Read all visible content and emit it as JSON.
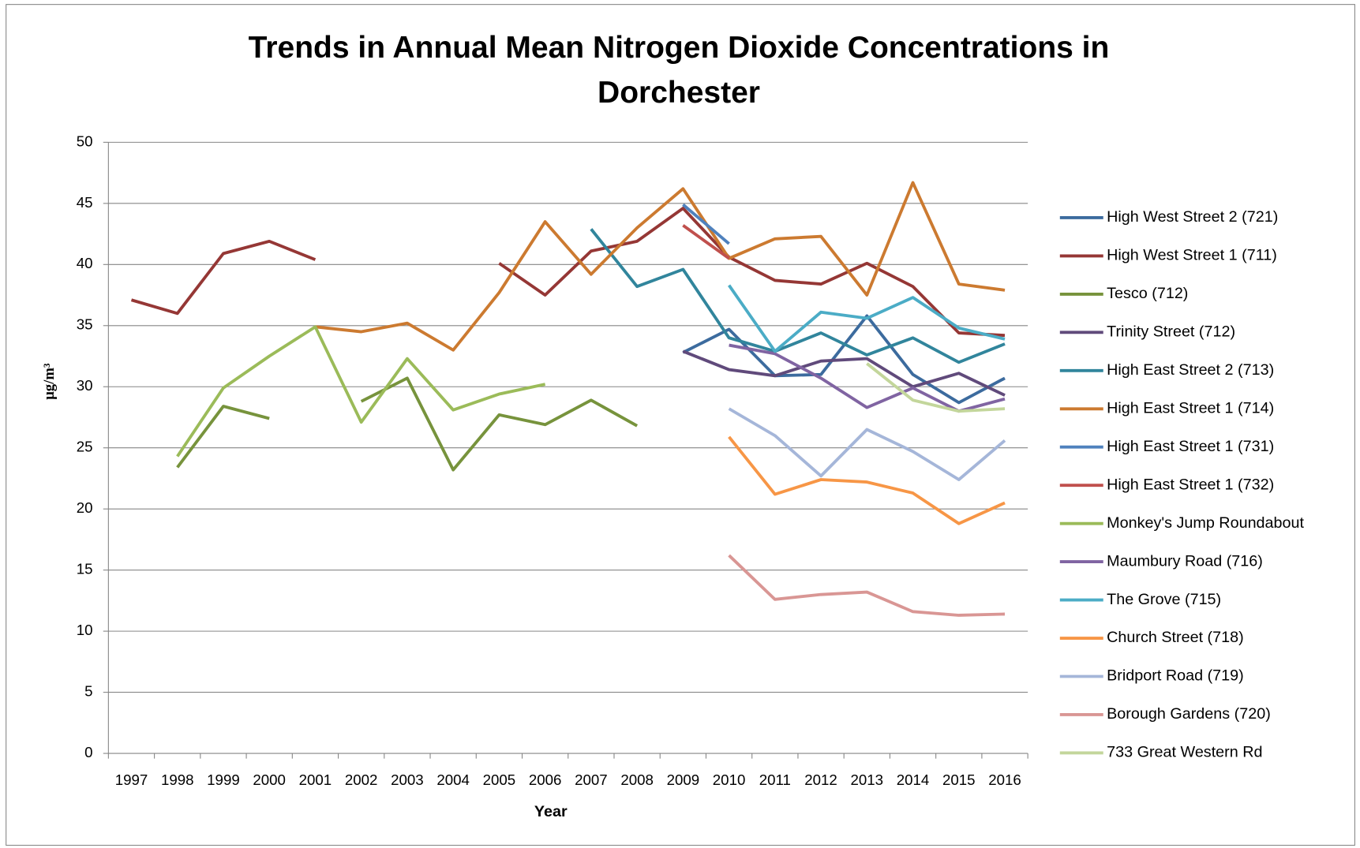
{
  "chart_data": {
    "type": "line",
    "title": "Trends in Annual Mean Nitrogen Dioxide Concentrations in Dorchester",
    "x_label": "Year",
    "y_label": "μg/m³",
    "categories": [
      "1997",
      "1998",
      "1999",
      "2000",
      "2001",
      "2002",
      "2003",
      "2004",
      "2005",
      "2006",
      "2007",
      "2008",
      "2009",
      "2010",
      "2011",
      "2012",
      "2013",
      "2014",
      "2015",
      "2016"
    ],
    "ylim": [
      0,
      50
    ],
    "yticks": [
      0,
      5,
      10,
      15,
      20,
      25,
      30,
      35,
      40,
      45,
      50
    ],
    "grid": true,
    "legend": "right",
    "series": [
      {
        "name": "High West Street 2 (721)",
        "color": "#3c6b9e",
        "values": [
          null,
          null,
          null,
          null,
          null,
          null,
          null,
          null,
          null,
          null,
          null,
          null,
          32.8,
          34.7,
          30.9,
          31.0,
          35.8,
          31.0,
          28.7,
          30.7
        ]
      },
      {
        "name": "High West Street 1 (711)",
        "color": "#953735",
        "values": [
          37.1,
          36.0,
          40.9,
          41.9,
          40.4,
          null,
          null,
          null,
          40.1,
          37.5,
          41.1,
          41.9,
          44.6,
          40.6,
          38.7,
          38.4,
          40.1,
          38.2,
          34.4,
          34.2
        ]
      },
      {
        "name": "Tesco (712)",
        "color": "#77933c",
        "values": [
          null,
          23.4,
          28.4,
          27.4,
          null,
          28.8,
          30.7,
          23.2,
          27.7,
          26.9,
          28.9,
          26.8,
          null,
          null,
          null,
          null,
          null,
          null,
          null,
          null
        ]
      },
      {
        "name": "Trinity Street (712)",
        "color": "#604a7b",
        "values": [
          null,
          null,
          null,
          null,
          null,
          null,
          null,
          null,
          null,
          null,
          null,
          null,
          32.9,
          31.4,
          30.9,
          32.1,
          32.3,
          30.0,
          31.1,
          29.3
        ]
      },
      {
        "name": "High East Street 2 (713)",
        "color": "#31859c",
        "values": [
          null,
          null,
          null,
          null,
          null,
          null,
          null,
          null,
          null,
          null,
          42.9,
          38.2,
          39.6,
          34.0,
          32.9,
          34.4,
          32.6,
          34.0,
          32.0,
          33.5
        ]
      },
      {
        "name": "High East Street 1 (714)",
        "color": "#cc7a30",
        "values": [
          null,
          null,
          null,
          null,
          34.9,
          34.5,
          35.2,
          33.0,
          37.7,
          43.5,
          39.2,
          43.0,
          46.2,
          40.5,
          42.1,
          42.3,
          37.5,
          46.7,
          38.4,
          37.9
        ]
      },
      {
        "name": "High East Street 1 (731)",
        "color": "#4f81bd",
        "values": [
          null,
          null,
          null,
          null,
          null,
          null,
          null,
          null,
          null,
          null,
          null,
          null,
          44.9,
          41.7,
          null,
          null,
          null,
          null,
          null,
          null
        ]
      },
      {
        "name": "High East Street 1 (732)",
        "color": "#c0504d",
        "values": [
          null,
          null,
          null,
          null,
          null,
          null,
          null,
          null,
          null,
          null,
          null,
          null,
          43.2,
          40.5,
          null,
          null,
          null,
          null,
          null,
          null
        ]
      },
      {
        "name": "Monkey's Jump Roundabout",
        "color": "#9bbb59",
        "values": [
          null,
          24.3,
          29.9,
          32.5,
          34.9,
          27.1,
          32.3,
          28.1,
          29.4,
          30.2,
          null,
          null,
          null,
          null,
          null,
          null,
          null,
          null,
          null,
          null
        ]
      },
      {
        "name": "Maumbury Road (716)",
        "color": "#8064a2",
        "values": [
          null,
          null,
          null,
          null,
          null,
          null,
          null,
          null,
          null,
          null,
          null,
          null,
          null,
          33.4,
          32.7,
          30.7,
          28.3,
          29.9,
          28.0,
          29.0
        ]
      },
      {
        "name": "The Grove (715)",
        "color": "#4bacc6",
        "values": [
          null,
          null,
          null,
          null,
          null,
          null,
          null,
          null,
          null,
          null,
          null,
          null,
          null,
          38.3,
          32.9,
          36.1,
          35.6,
          37.3,
          34.8,
          33.9
        ]
      },
      {
        "name": "Church Street (718)",
        "color": "#f79646",
        "values": [
          null,
          null,
          null,
          null,
          null,
          null,
          null,
          null,
          null,
          null,
          null,
          null,
          null,
          25.9,
          21.2,
          22.4,
          22.2,
          21.3,
          18.8,
          20.5
        ]
      },
      {
        "name": "Bridport Road (719)",
        "color": "#a5b6d9",
        "values": [
          null,
          null,
          null,
          null,
          null,
          null,
          null,
          null,
          null,
          null,
          null,
          null,
          null,
          28.2,
          26.0,
          22.7,
          26.5,
          24.7,
          22.4,
          25.6
        ]
      },
      {
        "name": "Borough Gardens (720)",
        "color": "#d99694",
        "values": [
          null,
          null,
          null,
          null,
          null,
          null,
          null,
          null,
          null,
          null,
          null,
          null,
          null,
          16.2,
          12.6,
          13.0,
          13.2,
          11.6,
          11.3,
          11.4
        ]
      },
      {
        "name": "733 Great Western Rd",
        "color": "#c3d69b",
        "values": [
          null,
          null,
          null,
          null,
          null,
          null,
          null,
          null,
          null,
          null,
          null,
          null,
          null,
          null,
          null,
          null,
          31.9,
          28.9,
          28.0,
          28.2
        ]
      }
    ]
  }
}
